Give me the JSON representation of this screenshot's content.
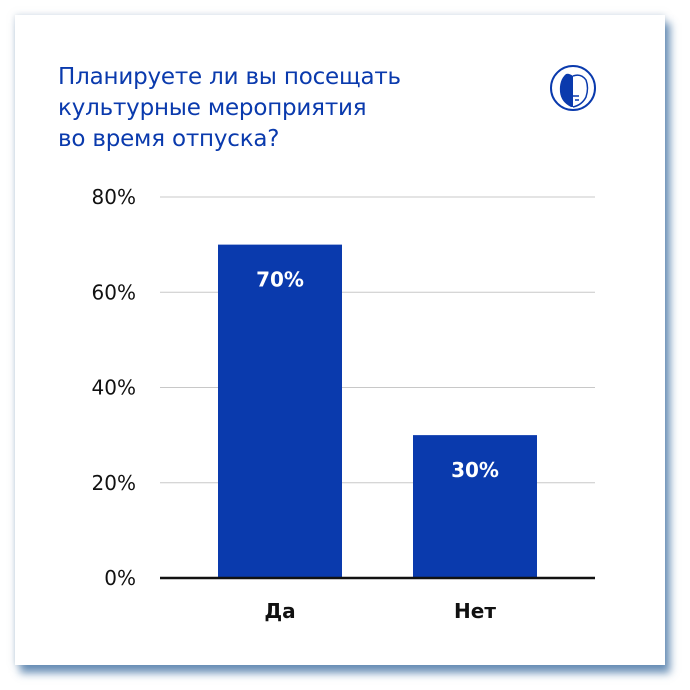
{
  "chart_data": {
    "type": "bar",
    "title": "Планируете ли вы посещать\nкультурные мероприятия\nво время отпуска?",
    "categories": [
      "Да",
      "Нет"
    ],
    "values": [
      70,
      30
    ],
    "data_labels": [
      "70%",
      "30%"
    ],
    "ylim": [
      0,
      80
    ],
    "yticks": [
      0,
      20,
      40,
      60,
      80
    ],
    "ytick_labels": [
      "0%",
      "20%",
      "40%",
      "60%",
      "80%"
    ],
    "grid": true,
    "bar_color": "#0a3aad",
    "title_color": "#0a3aad"
  },
  "logo": {
    "icon": "lion-head-logo"
  }
}
